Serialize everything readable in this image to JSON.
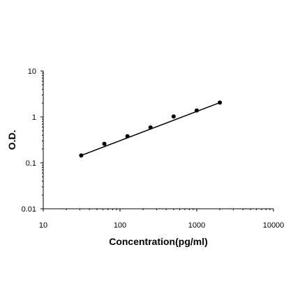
{
  "chart_data": {
    "type": "scatter",
    "title": "",
    "xlabel": "Concentration(pg/ml)",
    "ylabel": "O.D.",
    "xscale": "log",
    "yscale": "log",
    "xlim": [
      10,
      10000
    ],
    "ylim": [
      0.01,
      10
    ],
    "x_ticks": [
      "10",
      "100",
      "1000",
      "10000"
    ],
    "y_ticks": [
      "0.01",
      "0.1",
      "1",
      "10"
    ],
    "grid": false,
    "legend": "none",
    "series": [
      {
        "points": [
          {
            "x": 31.25,
            "y": 0.145
          },
          {
            "x": 62.5,
            "y": 0.26
          },
          {
            "x": 125,
            "y": 0.38
          },
          {
            "x": 250,
            "y": 0.59
          },
          {
            "x": 500,
            "y": 1.02
          },
          {
            "x": 1000,
            "y": 1.38
          },
          {
            "x": 2000,
            "y": 2.05
          }
        ]
      }
    ],
    "trendline": {
      "type": "power",
      "x_range": [
        31.25,
        2000
      ],
      "y_range": [
        0.145,
        2.05
      ]
    },
    "colors": {
      "marker": "#000000",
      "line": "#000000",
      "axis": "#000000"
    }
  }
}
